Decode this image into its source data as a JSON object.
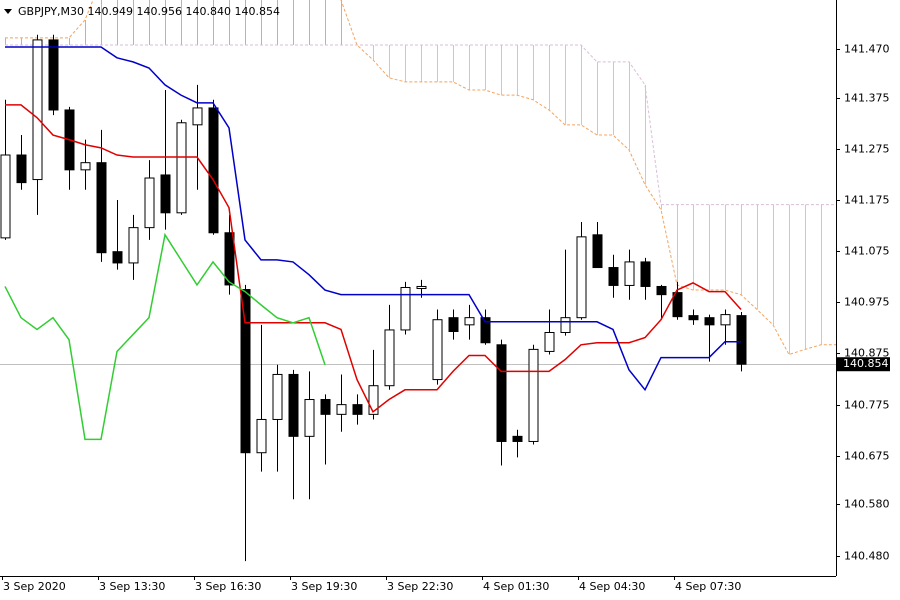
{
  "chart_data": {
    "type": "candlestick",
    "title": "GBPJPY,M30  140.949 140.956 140.840 140.854",
    "categories": [
      "3 Sep 2020",
      null,
      null,
      null,
      null,
      null,
      "3 Sep 13:30",
      null,
      null,
      null,
      null,
      null,
      "3 Sep 16:30",
      null,
      null,
      null,
      null,
      null,
      "3 Sep 19:30",
      null,
      null,
      null,
      null,
      null,
      "3 Sep 22:30",
      null,
      null,
      null,
      null,
      null,
      "4 Sep 01:30",
      null,
      null,
      null,
      null,
      null,
      "4 Sep 04:30",
      null,
      null,
      null,
      null,
      null,
      "4 Sep 07:30",
      null,
      null,
      null,
      null,
      null,
      null,
      null,
      null,
      null,
      null
    ],
    "open": [
      141.101,
      141.263,
      141.215,
      141.488,
      141.351,
      141.234,
      141.248,
      141.074,
      141.052,
      141.121,
      141.224,
      141.15,
      141.322,
      141.355,
      141.111,
      141.0,
      140.681,
      140.746,
      140.834,
      140.713,
      140.785,
      140.756,
      140.775,
      140.756,
      140.812,
      140.921,
      141.002,
      140.824,
      140.945,
      140.931,
      140.945,
      140.892,
      140.713,
      140.703,
      140.879,
      140.916,
      140.945,
      141.107,
      141.043,
      141.008,
      141.054,
      141.006,
      140.994,
      140.949,
      140.945,
      140.931,
      140.949,
      null,
      null,
      null,
      null,
      null,
      null
    ],
    "high": [
      141.371,
      141.302,
      141.498,
      141.498,
      141.357,
      141.293,
      141.312,
      141.175,
      141.146,
      141.253,
      141.39,
      141.332,
      141.4,
      141.371,
      141.146,
      141.009,
      140.931,
      140.853,
      140.843,
      140.84,
      140.795,
      140.834,
      140.795,
      140.882,
      140.97,
      141.015,
      141.019,
      140.961,
      140.961,
      140.97,
      140.961,
      140.902,
      140.726,
      140.892,
      140.961,
      141.078,
      141.132,
      141.132,
      141.068,
      141.078,
      141.062,
      141.009,
      141.015,
      140.961,
      140.951,
      140.961,
      140.956,
      null,
      null,
      null,
      null,
      null,
      null
    ],
    "low": [
      141.097,
      141.195,
      141.146,
      141.341,
      141.195,
      141.195,
      141.054,
      141.039,
      141.019,
      141.097,
      141.117,
      141.146,
      141.195,
      141.107,
      140.99,
      140.469,
      140.644,
      140.644,
      140.59,
      140.59,
      140.658,
      140.722,
      140.736,
      140.746,
      140.804,
      140.912,
      140.984,
      140.814,
      140.902,
      140.902,
      140.892,
      140.656,
      140.672,
      140.697,
      140.873,
      140.91,
      140.941,
      141.043,
      140.984,
      140.98,
      140.98,
      140.941,
      140.941,
      140.931,
      140.859,
      140.892,
      140.84,
      null,
      null,
      null,
      null,
      null,
      null
    ],
    "close": [
      141.263,
      141.209,
      141.488,
      141.351,
      141.234,
      141.248,
      141.072,
      141.052,
      141.121,
      141.218,
      141.15,
      141.326,
      141.355,
      141.111,
      141.009,
      140.681,
      140.746,
      140.834,
      140.713,
      140.785,
      140.756,
      140.775,
      140.756,
      140.812,
      140.921,
      141.004,
      141.006,
      140.941,
      140.918,
      140.945,
      140.896,
      140.703,
      140.703,
      140.883,
      140.916,
      140.945,
      141.103,
      141.043,
      141.008,
      141.054,
      141.006,
      140.99,
      140.947,
      140.941,
      140.931,
      140.951,
      140.854,
      null,
      null,
      null,
      null,
      null,
      null
    ],
    "up_color": "#ffffff",
    "down_color": "#000000",
    "series": [
      {
        "color": "#e00000",
        "values": [
          141.361,
          141.361,
          141.336,
          141.302,
          141.293,
          141.283,
          141.277,
          141.263,
          141.259,
          141.259,
          141.259,
          141.259,
          141.259,
          141.215,
          141.16,
          140.935,
          140.935,
          140.935,
          140.935,
          140.935,
          140.935,
          140.922,
          140.824,
          140.761,
          140.785,
          140.804,
          140.804,
          140.804,
          140.84,
          140.871,
          140.871,
          140.84,
          140.84,
          140.84,
          140.84,
          140.863,
          140.892,
          140.896,
          140.896,
          140.896,
          140.906,
          140.941,
          140.999,
          141.013,
          140.996,
          140.996,
          140.961,
          null,
          null,
          null,
          null,
          null,
          null
        ]
      },
      {
        "color": "#0000c8",
        "values": [
          141.474,
          141.474,
          141.474,
          141.474,
          141.474,
          141.474,
          141.474,
          141.453,
          141.445,
          141.433,
          141.4,
          141.38,
          141.365,
          141.365,
          141.316,
          141.097,
          141.058,
          141.058,
          141.054,
          141.029,
          140.999,
          140.99,
          140.99,
          140.99,
          140.99,
          140.99,
          140.99,
          140.99,
          140.99,
          140.99,
          140.937,
          140.937,
          140.937,
          140.937,
          140.937,
          140.937,
          140.937,
          140.937,
          140.922,
          140.843,
          140.804,
          140.867,
          140.867,
          140.867,
          140.867,
          140.898,
          140.898,
          null,
          null,
          null,
          null,
          null,
          null
        ]
      },
      {
        "color": "#32cd32",
        "values": [
          141.006,
          140.945,
          140.922,
          140.945,
          140.902,
          140.707,
          140.707,
          140.879,
          140.912,
          140.945,
          141.107,
          141.058,
          141.009,
          141.054,
          141.015,
          140.996,
          140.97,
          140.945,
          140.935,
          140.945,
          140.853,
          null,
          null,
          null,
          null,
          null,
          null,
          null,
          null,
          null,
          null,
          null,
          null,
          null,
          null,
          null,
          null,
          null,
          null,
          null,
          null,
          null,
          null,
          null,
          null,
          null,
          null,
          null,
          null,
          null,
          null,
          null,
          null
        ]
      }
    ],
    "cloud": {
      "up_color": "#f4a460",
      "down_color": "#d8bfd8",
      "span_a": [
        141.492,
        141.492,
        141.492,
        141.492,
        141.492,
        141.527,
        141.605,
        141.605,
        141.605,
        141.605,
        141.605,
        141.605,
        141.605,
        141.605,
        141.605,
        141.605,
        141.605,
        141.605,
        141.605,
        141.605,
        141.605,
        141.566,
        141.478,
        141.449,
        141.414,
        141.406,
        141.406,
        141.406,
        141.406,
        141.39,
        141.39,
        141.38,
        141.38,
        141.371,
        141.351,
        141.322,
        141.322,
        141.302,
        141.302,
        141.273,
        141.205,
        141.156,
        141.009,
        140.999,
        140.999,
        140.999,
        140.99,
        140.961,
        140.931,
        140.873,
        140.883,
        140.892,
        140.892
      ],
      "span_b": [
        141.478,
        141.478,
        141.478,
        141.478,
        141.478,
        141.478,
        141.478,
        141.478,
        141.478,
        141.478,
        141.478,
        141.478,
        141.478,
        141.478,
        141.478,
        141.478,
        141.478,
        141.478,
        141.478,
        141.478,
        141.478,
        141.478,
        141.478,
        141.478,
        141.478,
        141.478,
        141.478,
        141.478,
        141.478,
        141.478,
        141.478,
        141.478,
        141.478,
        141.478,
        141.478,
        141.478,
        141.478,
        141.445,
        141.445,
        141.445,
        141.4,
        141.166,
        141.166,
        141.166,
        141.166,
        141.166,
        141.166,
        141.166,
        141.166,
        141.166,
        141.166,
        141.166,
        141.166
      ]
    },
    "last_price": 140.854,
    "ylim": [
      140.44,
      141.566
    ],
    "yticks": [
      {
        "value": 140.48,
        "label": "140.480"
      },
      {
        "value": 140.58,
        "label": "140.580"
      },
      140.675,
      140.775,
      140.875,
      140.975,
      141.075,
      141.175,
      141.275,
      141.375,
      {
        "value": 141.47,
        "label": "141.470"
      }
    ],
    "grid": false
  }
}
